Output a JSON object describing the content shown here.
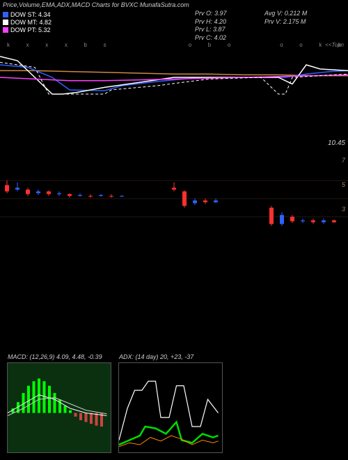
{
  "title": "Price,Volume,EMA,ADX,MACD Charts for BVXC MunafaSutra.com",
  "legend": [
    {
      "label": "DOW ST: 4.34",
      "color": "#3060ff"
    },
    {
      "label": "DOW MT: 4.82",
      "color": "#ffffff"
    },
    {
      "label": "DOW PT: 5.32",
      "color": "#ff40ff"
    }
  ],
  "info_left": [
    "Prv  O: 3.97",
    "Prv  H: 4.20",
    "Prv  L: 3.87",
    "Prv  C: 4.02"
  ],
  "info_right": [
    "Avg V: 0.212  M",
    "Prv  V: 2.175 M"
  ],
  "top_ticks": [
    "k",
    "x",
    "x",
    "x",
    "b",
    "s",
    "",
    "",
    "",
    "",
    "o",
    "b",
    "o",
    "",
    "",
    "o",
    "o",
    "k",
    "k"
  ],
  "top_right": "<<Topn",
  "ema": {
    "type": "line",
    "xlim": [
      0,
      100
    ],
    "ylim": [
      0,
      100
    ],
    "orange": {
      "color": "#cc8844",
      "points": [
        [
          0,
          78
        ],
        [
          10,
          78
        ],
        [
          20,
          77
        ],
        [
          30,
          76
        ],
        [
          40,
          75
        ],
        [
          50,
          74
        ],
        [
          60,
          74
        ],
        [
          70,
          73
        ],
        [
          80,
          73
        ],
        [
          90,
          72
        ],
        [
          100,
          72
        ]
      ]
    },
    "blue": {
      "color": "#3060ff",
      "points": [
        [
          0,
          85
        ],
        [
          8,
          82
        ],
        [
          15,
          70
        ],
        [
          20,
          55
        ],
        [
          30,
          54
        ],
        [
          35,
          60
        ],
        [
          45,
          65
        ],
        [
          55,
          69
        ],
        [
          65,
          70
        ],
        [
          75,
          70
        ],
        [
          82,
          70
        ],
        [
          88,
          74
        ],
        [
          95,
          77
        ],
        [
          100,
          78
        ]
      ]
    },
    "white": {
      "color": "#ffffff",
      "points": [
        [
          0,
          95
        ],
        [
          5,
          90
        ],
        [
          15,
          50
        ],
        [
          18,
          50
        ],
        [
          22,
          52
        ],
        [
          30,
          58
        ],
        [
          40,
          64
        ],
        [
          50,
          70
        ],
        [
          60,
          70
        ],
        [
          70,
          70
        ],
        [
          80,
          70
        ],
        [
          84,
          62
        ],
        [
          88,
          85
        ],
        [
          92,
          80
        ],
        [
          100,
          78
        ]
      ]
    },
    "magenta": {
      "color": "#ff40ff",
      "points": [
        [
          0,
          70
        ],
        [
          10,
          68
        ],
        [
          20,
          66
        ],
        [
          30,
          66
        ],
        [
          40,
          67
        ],
        [
          50,
          68
        ],
        [
          60,
          69
        ],
        [
          70,
          70
        ],
        [
          80,
          71
        ],
        [
          90,
          72
        ],
        [
          100,
          73
        ]
      ]
    },
    "dashwhite": {
      "color": "#ffffff",
      "dash": "4,3",
      "points": [
        [
          0,
          88
        ],
        [
          10,
          82
        ],
        [
          14,
          50
        ],
        [
          30,
          50
        ],
        [
          32,
          55
        ],
        [
          45,
          60
        ],
        [
          60,
          68
        ],
        [
          75,
          70
        ],
        [
          80,
          50
        ],
        [
          82,
          50
        ],
        [
          84,
          70
        ],
        [
          92,
          72
        ],
        [
          100,
          74
        ]
      ]
    }
  },
  "price_label": "10.45",
  "candles": {
    "xlim": [
      0,
      100
    ],
    "ylim": [
      0,
      10
    ],
    "ylabels": [
      {
        "y": 7,
        "t": "7"
      },
      {
        "y": 5,
        "t": "5"
      },
      {
        "y": 3,
        "t": "3"
      }
    ],
    "series": [
      {
        "x": 2,
        "o": 6.5,
        "c": 5.8,
        "h": 7.0,
        "l": 5.6,
        "col": "#ff3030"
      },
      {
        "x": 5,
        "o": 6.0,
        "c": 6.2,
        "h": 6.8,
        "l": 5.8,
        "col": "#3060ff"
      },
      {
        "x": 8,
        "o": 6.0,
        "c": 5.5,
        "h": 6.2,
        "l": 5.3,
        "col": "#ff3030"
      },
      {
        "x": 11,
        "o": 5.6,
        "c": 5.8,
        "h": 6.0,
        "l": 5.4,
        "col": "#3060ff"
      },
      {
        "x": 14,
        "o": 5.8,
        "c": 5.5,
        "h": 5.9,
        "l": 5.3,
        "col": "#ff3030"
      },
      {
        "x": 17,
        "o": 5.5,
        "c": 5.6,
        "h": 5.8,
        "l": 5.3,
        "col": "#3060ff"
      },
      {
        "x": 20,
        "o": 5.5,
        "c": 5.3,
        "h": 5.6,
        "l": 5.1,
        "col": "#ff3030"
      },
      {
        "x": 23,
        "o": 5.3,
        "c": 5.4,
        "h": 5.6,
        "l": 5.2,
        "col": "#3060ff"
      },
      {
        "x": 26,
        "o": 5.3,
        "c": 5.3,
        "h": 5.5,
        "l": 5.1,
        "col": "#ff3030"
      },
      {
        "x": 29,
        "o": 5.3,
        "c": 5.4,
        "h": 5.5,
        "l": 5.2,
        "col": "#3060ff"
      },
      {
        "x": 32,
        "o": 5.3,
        "c": 5.3,
        "h": 5.5,
        "l": 5.1,
        "col": "#ff3030"
      },
      {
        "x": 35,
        "o": 5.3,
        "c": 5.3,
        "h": 5.4,
        "l": 5.2,
        "col": "#3060ff"
      },
      {
        "x": 50,
        "o": 6.2,
        "c": 6.0,
        "h": 6.8,
        "l": 5.8,
        "col": "#ff3030"
      },
      {
        "x": 53,
        "o": 5.8,
        "c": 4.2,
        "h": 5.9,
        "l": 4.0,
        "col": "#ff3030"
      },
      {
        "x": 56,
        "o": 4.5,
        "c": 4.8,
        "h": 5.0,
        "l": 4.3,
        "col": "#3060ff"
      },
      {
        "x": 59,
        "o": 4.8,
        "c": 4.6,
        "h": 5.0,
        "l": 4.4,
        "col": "#ff3030"
      },
      {
        "x": 62,
        "o": 4.6,
        "c": 4.8,
        "h": 5.0,
        "l": 4.5,
        "col": "#3060ff"
      },
      {
        "x": 78,
        "o": 4.0,
        "c": 2.2,
        "h": 4.2,
        "l": 2.0,
        "col": "#ff3030"
      },
      {
        "x": 81,
        "o": 2.2,
        "c": 3.2,
        "h": 3.5,
        "l": 2.0,
        "col": "#3060ff"
      },
      {
        "x": 84,
        "o": 3.0,
        "c": 2.5,
        "h": 3.2,
        "l": 2.3,
        "col": "#ff3030"
      },
      {
        "x": 87,
        "o": 2.5,
        "c": 2.6,
        "h": 2.8,
        "l": 2.3,
        "col": "#3060ff"
      },
      {
        "x": 90,
        "o": 2.6,
        "c": 2.4,
        "h": 2.8,
        "l": 2.2,
        "col": "#ff3030"
      },
      {
        "x": 93,
        "o": 2.4,
        "c": 2.6,
        "h": 2.8,
        "l": 2.2,
        "col": "#3060ff"
      },
      {
        "x": 96,
        "o": 2.6,
        "c": 2.4,
        "h": 2.7,
        "l": 2.3,
        "col": "#ff3030"
      }
    ]
  },
  "macd": {
    "title": "MACD:            (12,26,9) 4.09,  4.48,  -0.39",
    "bars": [
      {
        "x": 5,
        "h": 5,
        "c": "#00ff00"
      },
      {
        "x": 10,
        "h": 12,
        "c": "#00ff00"
      },
      {
        "x": 15,
        "h": 22,
        "c": "#00ff00"
      },
      {
        "x": 20,
        "h": 30,
        "c": "#00ff00"
      },
      {
        "x": 25,
        "h": 35,
        "c": "#00ff00"
      },
      {
        "x": 30,
        "h": 38,
        "c": "#00ff00"
      },
      {
        "x": 35,
        "h": 35,
        "c": "#00ff00"
      },
      {
        "x": 40,
        "h": 30,
        "c": "#00ff00"
      },
      {
        "x": 45,
        "h": 22,
        "c": "#00ff00"
      },
      {
        "x": 50,
        "h": 15,
        "c": "#00ff00"
      },
      {
        "x": 55,
        "h": 8,
        "c": "#00ff00"
      },
      {
        "x": 60,
        "h": 3,
        "c": "#00ff00"
      },
      {
        "x": 65,
        "h": -4,
        "c": "#cc4444"
      },
      {
        "x": 70,
        "h": -8,
        "c": "#cc4444"
      },
      {
        "x": 75,
        "h": -10,
        "c": "#cc4444"
      },
      {
        "x": 80,
        "h": -12,
        "c": "#cc4444"
      },
      {
        "x": 85,
        "h": -14,
        "c": "#cc4444"
      },
      {
        "x": 90,
        "h": -15,
        "c": "#cc4444"
      }
    ],
    "line1": {
      "color": "#ffffff",
      "points": [
        [
          0,
          55
        ],
        [
          15,
          45
        ],
        [
          30,
          35
        ],
        [
          45,
          40
        ],
        [
          60,
          50
        ],
        [
          75,
          55
        ],
        [
          95,
          58
        ]
      ]
    },
    "line2": {
      "color": "#cccccc",
      "points": [
        [
          0,
          58
        ],
        [
          15,
          50
        ],
        [
          30,
          40
        ],
        [
          45,
          38
        ],
        [
          60,
          45
        ],
        [
          75,
          52
        ],
        [
          95,
          56
        ]
      ]
    }
  },
  "adx": {
    "title": "ADX:              (14  day) 20,  +23,  -37",
    "white": {
      "color": "#ffffff",
      "points": [
        [
          0,
          85
        ],
        [
          8,
          50
        ],
        [
          15,
          30
        ],
        [
          22,
          30
        ],
        [
          28,
          20
        ],
        [
          35,
          20
        ],
        [
          40,
          60
        ],
        [
          48,
          60
        ],
        [
          55,
          25
        ],
        [
          62,
          25
        ],
        [
          70,
          70
        ],
        [
          78,
          70
        ],
        [
          85,
          40
        ],
        [
          95,
          55
        ]
      ]
    },
    "green": {
      "color": "#00dd00",
      "width": 2.5,
      "points": [
        [
          0,
          90
        ],
        [
          10,
          85
        ],
        [
          20,
          80
        ],
        [
          25,
          70
        ],
        [
          35,
          72
        ],
        [
          45,
          78
        ],
        [
          55,
          65
        ],
        [
          60,
          85
        ],
        [
          70,
          88
        ],
        [
          80,
          78
        ],
        [
          90,
          82
        ],
        [
          95,
          80
        ]
      ]
    },
    "orange": {
      "color": "#ff8800",
      "points": [
        [
          0,
          92
        ],
        [
          10,
          88
        ],
        [
          20,
          90
        ],
        [
          30,
          82
        ],
        [
          40,
          86
        ],
        [
          50,
          80
        ],
        [
          60,
          84
        ],
        [
          70,
          90
        ],
        [
          80,
          85
        ],
        [
          90,
          88
        ],
        [
          95,
          86
        ]
      ]
    }
  }
}
